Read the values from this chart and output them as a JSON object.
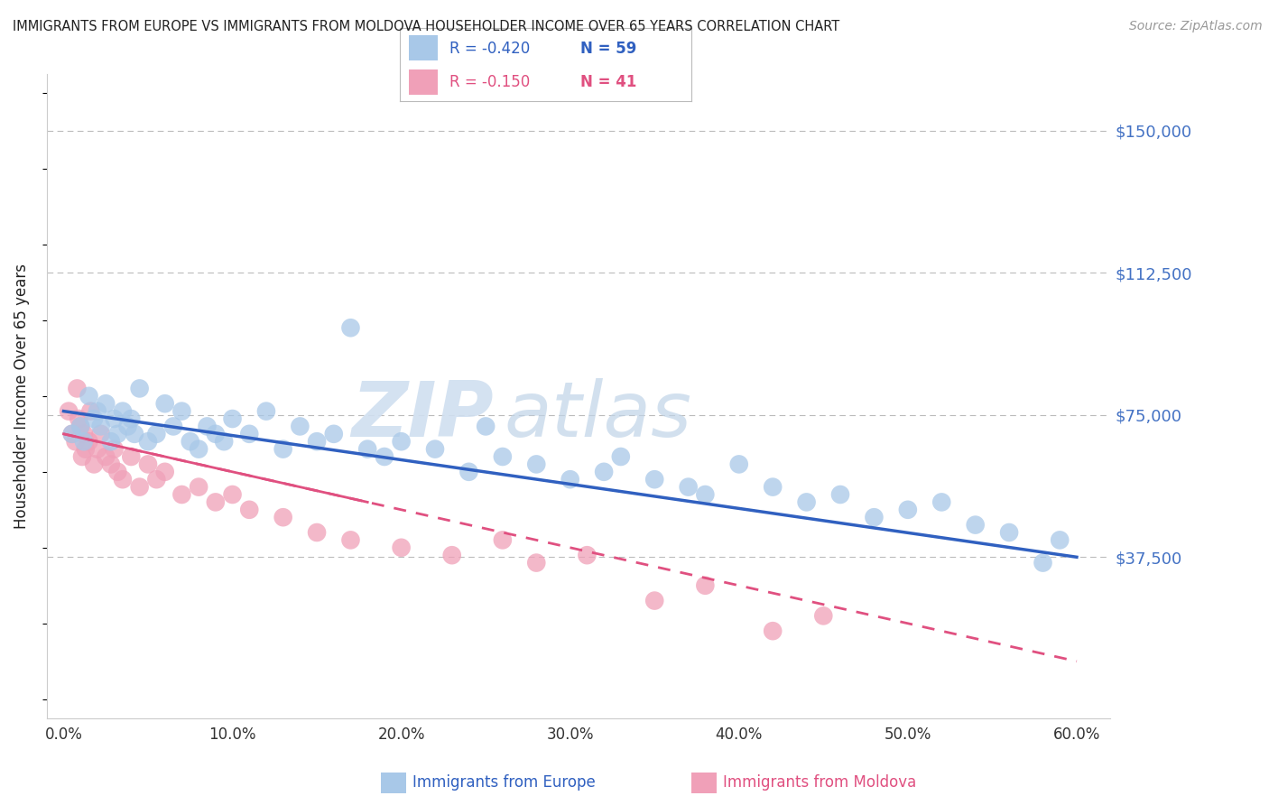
{
  "title": "IMMIGRANTS FROM EUROPE VS IMMIGRANTS FROM MOLDOVA HOUSEHOLDER INCOME OVER 65 YEARS CORRELATION CHART",
  "source": "Source: ZipAtlas.com",
  "ylabel": "Householder Income Over 65 years",
  "xlim": [
    0,
    60
  ],
  "ylim": [
    0,
    150000
  ],
  "europe_color": "#A8C8E8",
  "moldova_color": "#F0A0B8",
  "europe_line_color": "#3060C0",
  "moldova_line_color": "#E05080",
  "legend_europe_R": "-0.420",
  "legend_europe_N": "59",
  "legend_moldova_R": "-0.150",
  "legend_moldova_N": "41",
  "watermark_zip": "ZIP",
  "watermark_atlas": "atlas",
  "grid_color": "#BBBBBB",
  "background_color": "#FFFFFF",
  "title_color": "#222222",
  "ytick_color": "#4472C4",
  "xtick_color": "#333333",
  "europe_x": [
    0.5,
    1.0,
    1.2,
    1.5,
    1.8,
    2.0,
    2.2,
    2.5,
    2.8,
    3.0,
    3.2,
    3.5,
    3.8,
    4.0,
    4.2,
    4.5,
    5.0,
    5.5,
    6.0,
    6.5,
    7.0,
    7.5,
    8.0,
    8.5,
    9.0,
    9.5,
    10.0,
    11.0,
    12.0,
    13.0,
    14.0,
    15.0,
    16.0,
    17.0,
    18.0,
    19.0,
    20.0,
    22.0,
    24.0,
    25.0,
    26.0,
    28.0,
    30.0,
    32.0,
    33.0,
    35.0,
    37.0,
    38.0,
    40.0,
    42.0,
    44.0,
    46.0,
    48.0,
    50.0,
    52.0,
    54.0,
    56.0,
    58.0,
    59.0
  ],
  "europe_y": [
    70000,
    72000,
    68000,
    80000,
    74000,
    76000,
    72000,
    78000,
    68000,
    74000,
    70000,
    76000,
    72000,
    74000,
    70000,
    82000,
    68000,
    70000,
    78000,
    72000,
    76000,
    68000,
    66000,
    72000,
    70000,
    68000,
    74000,
    70000,
    76000,
    66000,
    72000,
    68000,
    70000,
    98000,
    66000,
    64000,
    68000,
    66000,
    60000,
    72000,
    64000,
    62000,
    58000,
    60000,
    64000,
    58000,
    56000,
    54000,
    62000,
    56000,
    52000,
    54000,
    48000,
    50000,
    52000,
    46000,
    44000,
    36000,
    42000
  ],
  "moldova_x": [
    0.3,
    0.5,
    0.7,
    0.8,
    0.9,
    1.0,
    1.1,
    1.2,
    1.3,
    1.5,
    1.6,
    1.8,
    2.0,
    2.2,
    2.5,
    2.8,
    3.0,
    3.2,
    3.5,
    4.0,
    4.5,
    5.0,
    5.5,
    6.0,
    7.0,
    8.0,
    9.0,
    10.0,
    11.0,
    13.0,
    15.0,
    17.0,
    20.0,
    23.0,
    26.0,
    28.0,
    31.0,
    35.0,
    38.0,
    42.0,
    45.0
  ],
  "moldova_y": [
    76000,
    70000,
    68000,
    82000,
    74000,
    72000,
    64000,
    70000,
    66000,
    68000,
    76000,
    62000,
    66000,
    70000,
    64000,
    62000,
    66000,
    60000,
    58000,
    64000,
    56000,
    62000,
    58000,
    60000,
    54000,
    56000,
    52000,
    54000,
    50000,
    48000,
    44000,
    42000,
    40000,
    38000,
    42000,
    36000,
    38000,
    26000,
    30000,
    18000,
    22000
  ],
  "europe_trend_x0": 0,
  "europe_trend_y0": 76000,
  "europe_trend_x1": 60,
  "europe_trend_y1": 37500,
  "moldova_solid_x0": 0,
  "moldova_solid_y0": 70000,
  "moldova_solid_x1": 18,
  "moldova_solid_y1": 52000,
  "moldova_dash_x0": 0,
  "moldova_dash_y0": 70000,
  "moldova_dash_x1": 60,
  "moldova_dash_y1": 10000
}
